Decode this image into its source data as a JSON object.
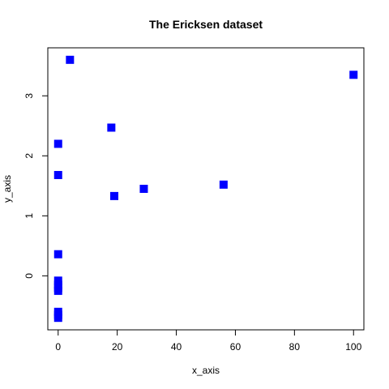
{
  "chart_data": {
    "type": "scatter",
    "title": "The Ericksen dataset",
    "xlabel": "x_axis",
    "ylabel": "y_axis",
    "xlim": [
      -3.5,
      103.5
    ],
    "ylim": [
      -0.9,
      3.8
    ],
    "xticks": [
      0,
      20,
      40,
      60,
      80,
      100
    ],
    "yticks": [
      0,
      1,
      2,
      3
    ],
    "marker": "square",
    "marker_color": "#0000ff",
    "grid": false,
    "points": [
      {
        "x": 4,
        "y": 3.6
      },
      {
        "x": 100,
        "y": 3.35
      },
      {
        "x": 18,
        "y": 2.47
      },
      {
        "x": 0,
        "y": 2.2
      },
      {
        "x": 0,
        "y": 1.68
      },
      {
        "x": 56,
        "y": 1.52
      },
      {
        "x": 29,
        "y": 1.45
      },
      {
        "x": 19,
        "y": 1.33
      },
      {
        "x": 0,
        "y": 0.36
      },
      {
        "x": 0,
        "y": -0.08
      },
      {
        "x": 0,
        "y": -0.15
      },
      {
        "x": 0,
        "y": -0.2
      },
      {
        "x": 0,
        "y": -0.25
      },
      {
        "x": 0,
        "y": -0.6
      },
      {
        "x": 0,
        "y": -0.65
      },
      {
        "x": 0,
        "y": -0.7
      }
    ]
  }
}
